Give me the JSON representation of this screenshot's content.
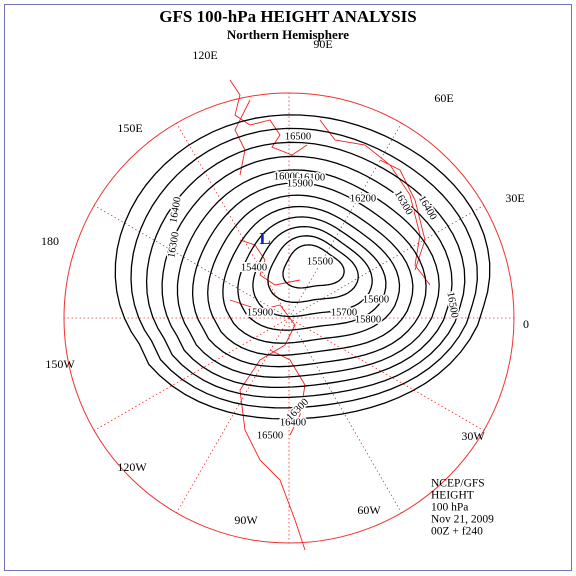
{
  "header": {
    "title": "GFS 100-hPa HEIGHT ANALYSIS",
    "subtitle": "Northern Hemisphere"
  },
  "longitude_labels": [
    "90E",
    "60E",
    "30E",
    "0",
    "30W",
    "60W",
    "90W",
    "120W",
    "150W",
    "180",
    "150E",
    "120E"
  ],
  "low_marker": "L",
  "contour_labels": [
    16500,
    16400,
    16300,
    16000,
    16100,
    15900,
    16200,
    16300,
    16400,
    15400,
    15500,
    15600,
    15700,
    15800,
    15900,
    16500,
    16500,
    16400,
    16300
  ],
  "info": [
    "NCEP/GFS",
    "HEIGHT",
    "100 hPa",
    "Nov 21, 2009",
    "00Z + f240"
  ]
}
